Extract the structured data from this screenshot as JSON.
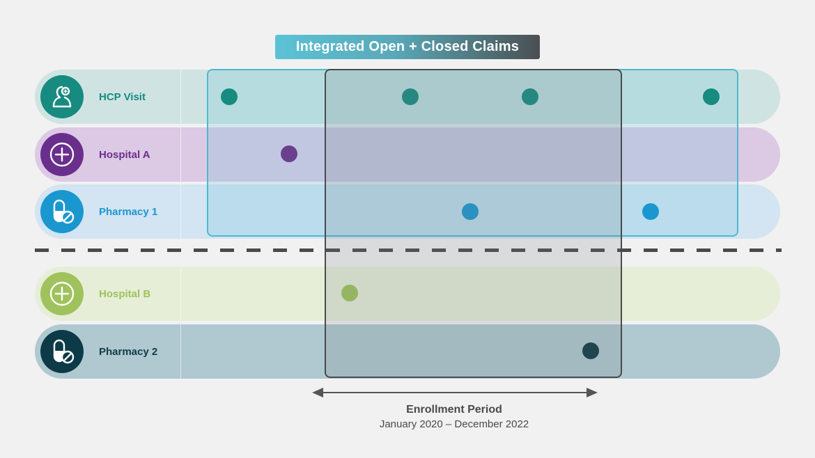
{
  "banner": {
    "title": "Integrated Open + Closed Claims"
  },
  "rows": [
    {
      "label": "HCP Visit",
      "icon": "person-icon",
      "row_color": "#cfe4e2",
      "icon_bg": "#178b80",
      "label_color": "#178b80",
      "dot_color": "#178b80"
    },
    {
      "label": "Hospital A",
      "icon": "plus-circle-icon",
      "row_color": "#dcc9e4",
      "icon_bg": "#6a2f8c",
      "label_color": "#6a2f8c",
      "dot_color": "#6a3f8e"
    },
    {
      "label": "Pharmacy 1",
      "icon": "pill-icon",
      "row_color": "#d3e4f2",
      "icon_bg": "#1b97cf",
      "label_color": "#1b97cf",
      "dot_color": "#1b97cf"
    },
    {
      "label": "Hospital B",
      "icon": "plus-circle-icon",
      "row_color": "#e6eed8",
      "icon_bg": "#9fc25c",
      "label_color": "#9fc25c",
      "dot_color": "#9fc25c"
    },
    {
      "label": "Pharmacy 2",
      "icon": "pill-icon",
      "row_color": "#b0c8d0",
      "icon_bg": "#0d3a47",
      "label_color": "#123a47",
      "dot_color": "#0e3a44"
    }
  ],
  "enrollment": {
    "title": "Enrollment Period",
    "range": "January 2020 – December 2022"
  }
}
